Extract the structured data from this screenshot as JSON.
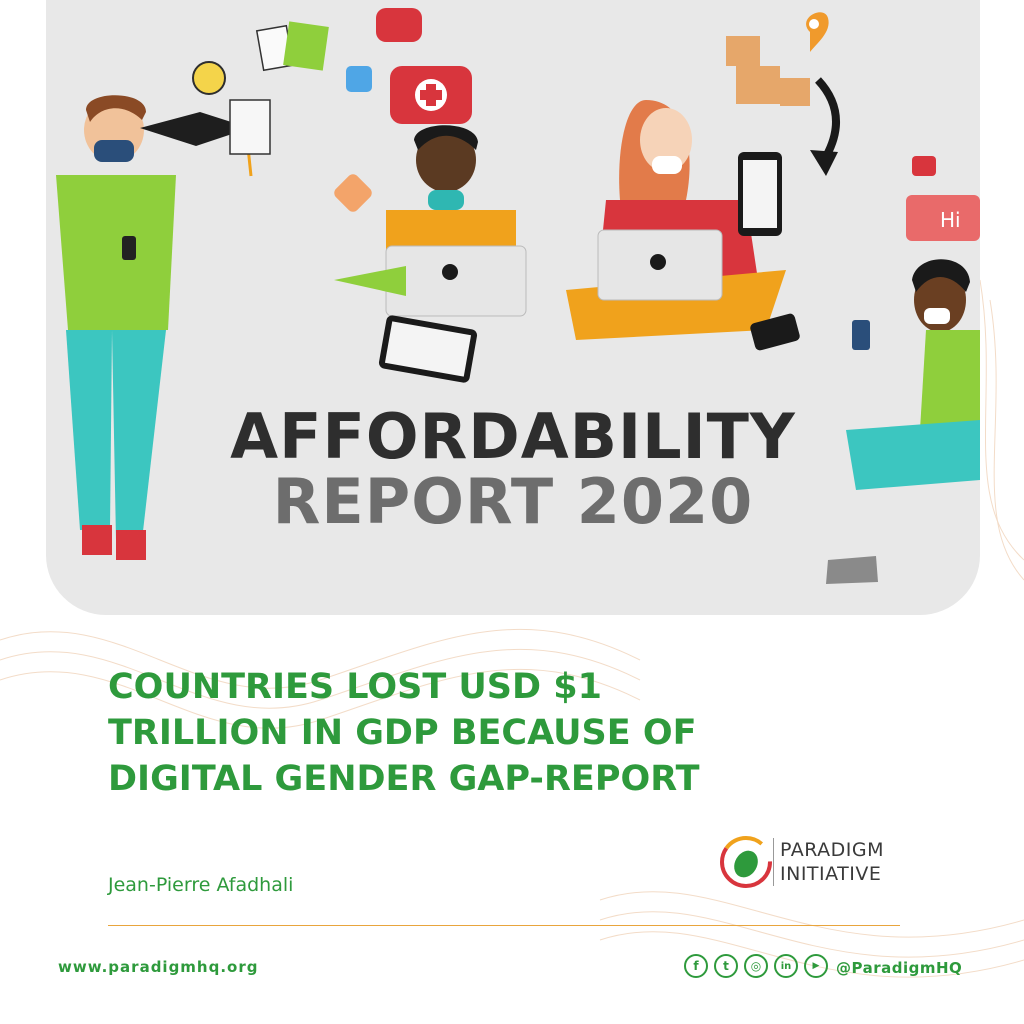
{
  "report": {
    "line1": "AFFORDABILITY",
    "line2": "REPORT 2020"
  },
  "headline": "COUNTRIES LOST USD $1 TRILLION IN GDP BECAUSE OF DIGITAL GENDER GAP-REPORT",
  "author": "Jean-Pierre Afadhali",
  "logo": {
    "line1": "PARADIGM",
    "line2": "INITIATIVE"
  },
  "footer": {
    "website": "www.paradigmhq.org",
    "handle": "@ParadigmHQ",
    "socials": [
      {
        "name": "facebook-icon",
        "glyph": "f"
      },
      {
        "name": "twitter-icon",
        "glyph": "t"
      },
      {
        "name": "instagram-icon",
        "glyph": "◎"
      },
      {
        "name": "linkedin-icon",
        "glyph": "in"
      },
      {
        "name": "youtube-icon",
        "glyph": "▶"
      }
    ]
  },
  "chat_bubble": "Hi",
  "colors": {
    "green": "#2e9a3c",
    "orange": "#e9a53c",
    "panel": "#e8e8e8",
    "dark_title": "#2e2e2e",
    "grey_title": "#6d6d6d"
  }
}
